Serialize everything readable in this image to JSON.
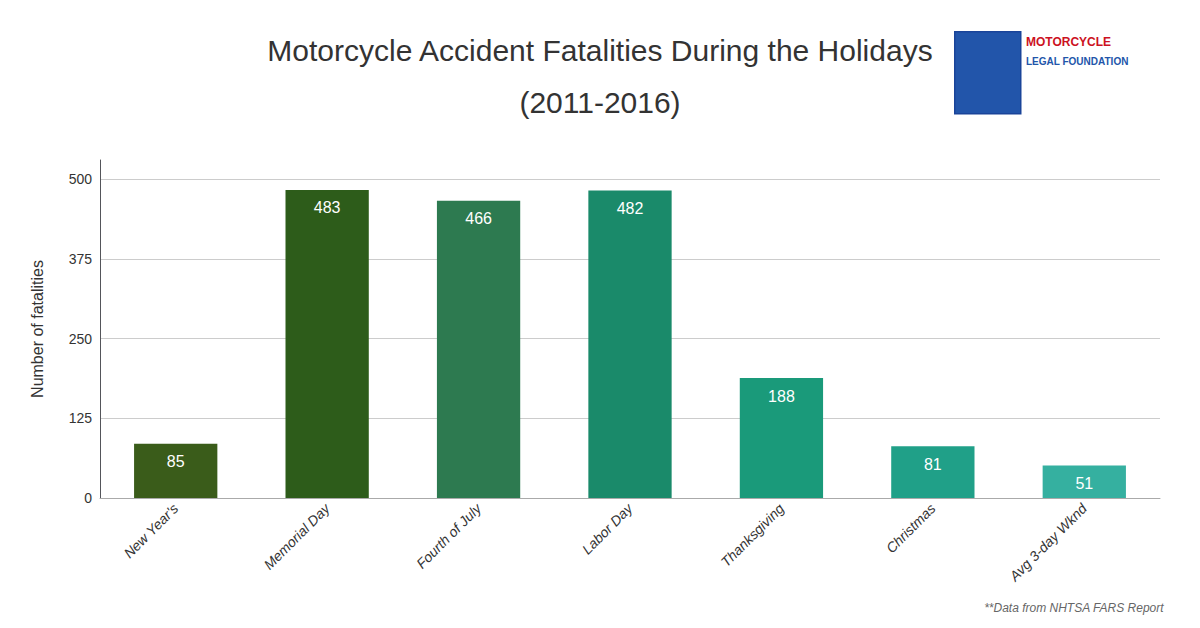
{
  "chart_data": {
    "type": "bar",
    "title": "Motorcycle Accident Fatalities During the Holidays",
    "subtitle": "(2011-2016)",
    "ylabel": "Number of fatalities",
    "categories": [
      "New Year's",
      "Memorial Day",
      "Fourth of July",
      "Labor Day",
      "Thanksgiving",
      "Christmas",
      "Avg 3-day Wknd"
    ],
    "values": [
      85,
      483,
      466,
      482,
      188,
      81,
      51
    ],
    "colors": [
      "#3a5c1a",
      "#2d5c1a",
      "#2d7a50",
      "#1a8a6a",
      "#1a9a7a",
      "#20a088",
      "#35b0a0"
    ],
    "ylim": [
      0,
      530
    ],
    "yticks": [
      0,
      125,
      250,
      375,
      500
    ],
    "grid": true,
    "data_labels": true,
    "annotations": [
      "**Data from NHTSA FARS Report",
      "MOTORCYCLE",
      "LEGAL FOUNDATION"
    ]
  }
}
